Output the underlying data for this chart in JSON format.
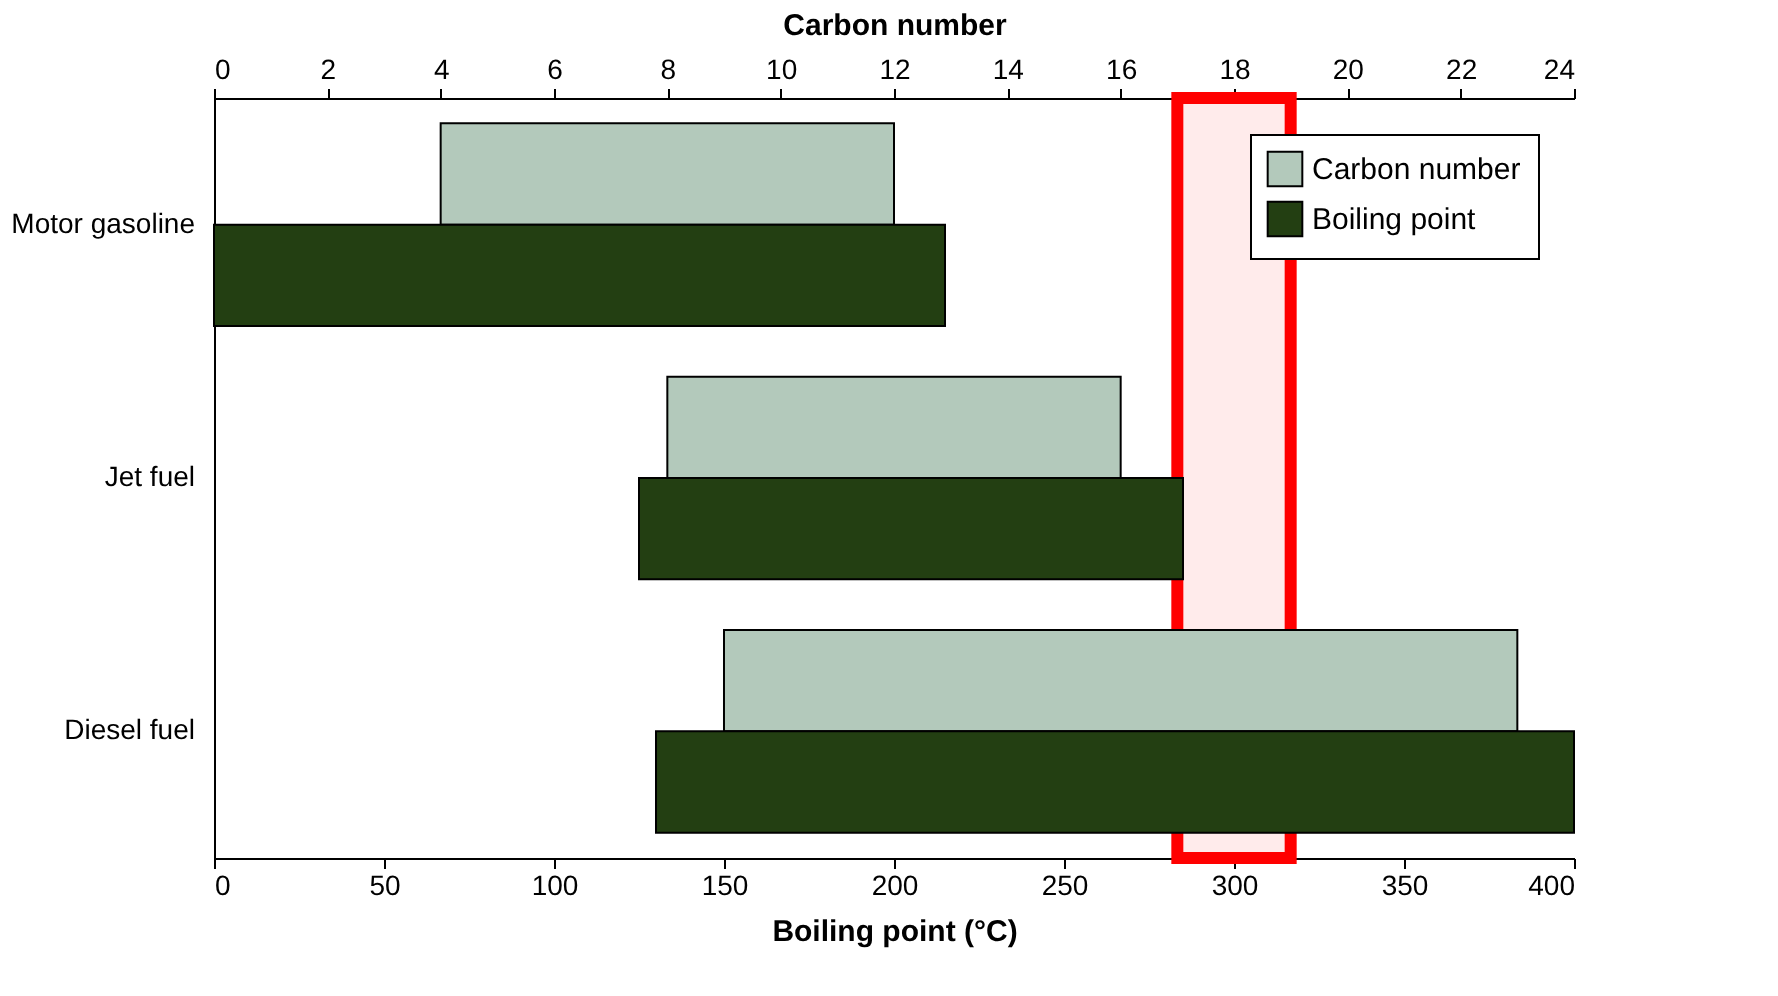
{
  "chart_data": {
    "type": "bar",
    "orientation": "horizontal",
    "xlabel": "Boiling point (°C)",
    "x2label": "Carbon number",
    "categories": [
      "Motor gasoline",
      "Jet fuel",
      "Diesel fuel"
    ],
    "series": [
      {
        "name": "Carbon number",
        "color": "#b3c9bb",
        "axis": "x2",
        "base": [
          4,
          8,
          9
        ],
        "values": [
          8,
          8,
          14
        ]
      },
      {
        "name": "Boiling point",
        "color": "#233f12",
        "base": [
          0,
          125,
          130
        ],
        "values": [
          215,
          160,
          270
        ]
      }
    ],
    "xlim": [
      0,
      400
    ],
    "xticks": [
      0,
      50,
      100,
      150,
      200,
      250,
      300,
      350,
      400
    ],
    "x2lim": [
      0,
      24
    ],
    "x2ticks": [
      0,
      2,
      4,
      6,
      8,
      10,
      12,
      14,
      16,
      18,
      20,
      22,
      24
    ],
    "bands": [
      {
        "axis": "x2",
        "from": 17,
        "to": 19,
        "label": null,
        "color": "#ff0000"
      }
    ],
    "legend": "top right",
    "grid": false
  }
}
